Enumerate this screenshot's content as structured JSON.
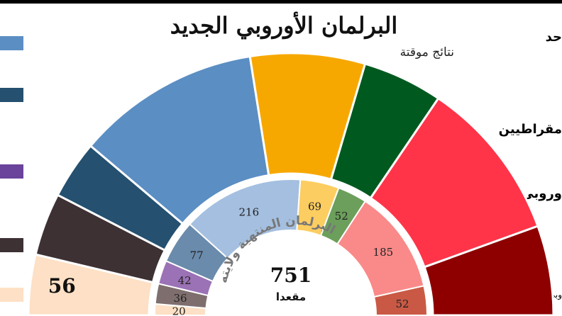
{
  "title": "البرلمان الأوروبي الجديد",
  "subtitle": "نتائج موقتة",
  "right_labels": [
    "حد",
    "مقراطيين",
    "وروبي",
    "وبي"
  ],
  "previous_parliament_label": "البرلمان المنتهية ولايته",
  "total": {
    "value": "751",
    "label": "مقعدا"
  },
  "chart_data": [
    {
      "type": "semicircle",
      "segments": [
        {
          "value": 56,
          "color": "#fde0c5",
          "label": "56"
        },
        {
          "value": 58,
          "color": "#3d3134"
        },
        {
          "value": 54,
          "color": "#25506f"
        },
        {
          "value": 170,
          "color": "#5b8ec3"
        },
        {
          "value": 106,
          "color": "#f7a800"
        },
        {
          "value": 74,
          "color": "#005a1f"
        },
        {
          "value": 150,
          "color": "#ff3449"
        },
        {
          "value": 83,
          "color": "#8e0000"
        }
      ]
    },
    {
      "type": "semicircle",
      "segments": [
        {
          "value": 20,
          "color": "#fde0c5",
          "label": "20"
        },
        {
          "value": 36,
          "color": "#7e6f6e",
          "label": "36"
        },
        {
          "value": 42,
          "color": "#9b72b5",
          "label": "42"
        },
        {
          "value": 77,
          "color": "#6a8bab",
          "label": "77"
        },
        {
          "value": 216,
          "color": "#a4bfe0",
          "label": "216"
        },
        {
          "value": 69,
          "color": "#fccd60",
          "label": "69"
        },
        {
          "value": 52,
          "color": "#6b9f5b",
          "label": "52"
        },
        {
          "value": 185,
          "color": "#f98a89",
          "label": "185"
        },
        {
          "value": 52,
          "color": "#c95945",
          "label": "52"
        }
      ]
    }
  ],
  "legend_colors": [
    "#5b8ec3",
    "#25506f",
    "#6a449a",
    "#3d3134",
    "#fde0c5"
  ]
}
